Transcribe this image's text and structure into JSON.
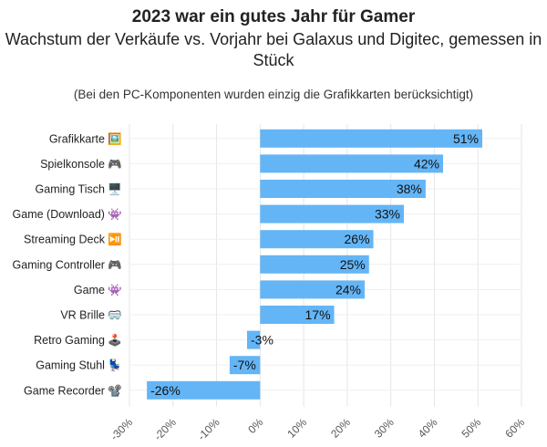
{
  "chart_data": {
    "type": "bar",
    "orientation": "horizontal",
    "title": "2023 war ein gutes Jahr für Gamer",
    "subtitle": "Wachstum der Verkäufe vs. Vorjahr bei Galaxus und Digitec, gemessen in Stück",
    "note": "(Bei den PC-Komponenten wurden einzig die Grafikkarten berücksichtigt)",
    "categories": [
      "Grafikkarte",
      "Spielkonsole",
      "Gaming Tisch",
      "Game (Download)",
      "Streaming Deck",
      "Gaming Controller",
      "Game",
      "VR Brille",
      "Retro Gaming",
      "Gaming Stuhl",
      "Game Recorder"
    ],
    "category_icons": [
      "🖼️",
      "🎮",
      "🖥️",
      "👾",
      "⏯️",
      "🎮",
      "👾",
      "🥽",
      "🕹️",
      "💺",
      "📽️"
    ],
    "values": [
      51,
      42,
      38,
      33,
      26,
      25,
      24,
      17,
      -3,
      -7,
      -26
    ],
    "value_labels": [
      "51%",
      "42%",
      "38%",
      "33%",
      "26%",
      "25%",
      "24%",
      "17%",
      "-3%",
      "-7%",
      "-26%"
    ],
    "x_ticks": [
      -30,
      -20,
      -10,
      0,
      10,
      20,
      30,
      40,
      50,
      60
    ],
    "x_tick_labels": [
      "-30%",
      "-20%",
      "-10%",
      "0%",
      "10%",
      "20%",
      "30%",
      "40%",
      "50%",
      "60%"
    ],
    "xlim": [
      -30,
      60
    ],
    "grid": true,
    "bar_color": "#64b5f6"
  }
}
